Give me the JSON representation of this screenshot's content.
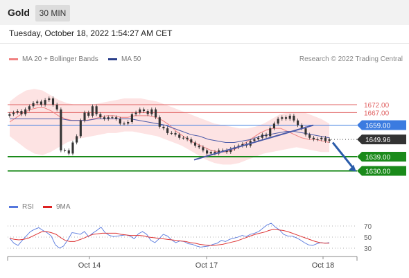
{
  "header": {
    "title": "Gold",
    "timeframe": "30 MIN"
  },
  "timestamp": "Tuesday, October 18, 2022 1:54:27 AM CET",
  "legend": {
    "ma20": "MA 20 + Bollinger Bands",
    "ma50": "MA 50",
    "credit": "Research © 2022 Trading Central",
    "rsi": "RSI",
    "rsi_ma": "9MA"
  },
  "colors": {
    "ma20": "#f08080",
    "ma50": "#4a5aa8",
    "band_fill": "#fde3e3",
    "resistance": "#e06060",
    "pivot": "#3b7be0",
    "support": "#1a8a1a",
    "trendline": "#4a5aa8",
    "arrow": "#2a5caa",
    "candle": "#333333",
    "rsi": "#5577dd",
    "rsi_ma": "#dd3333"
  },
  "chart_data": [
    {
      "type": "candlestick",
      "title": "Gold",
      "y_range": [
        1617,
        1683
      ],
      "x_ticks": [
        "Oct 14",
        "Oct 17",
        "Oct 18"
      ],
      "levels": [
        {
          "label": "1672.00",
          "value": 1672.0,
          "kind": "resistance"
        },
        {
          "label": "1667.00",
          "value": 1667.0,
          "kind": "resistance"
        },
        {
          "label": "1659.00",
          "value": 1659.0,
          "kind": "pivot"
        },
        {
          "label": "1649.96",
          "value": 1649.96,
          "kind": "last"
        },
        {
          "label": "1639.00",
          "value": 1639.0,
          "kind": "support"
        },
        {
          "label": "1630.00",
          "value": 1630.0,
          "kind": "support"
        }
      ],
      "close": [
        1666,
        1667,
        1668,
        1666,
        1669,
        1671,
        1673,
        1674,
        1672,
        1675,
        1676,
        1672,
        1669,
        1643,
        1643,
        1641,
        1648,
        1652,
        1662,
        1667,
        1665,
        1671,
        1666,
        1664,
        1663,
        1664,
        1664,
        1663,
        1660,
        1660,
        1661,
        1666,
        1667,
        1669,
        1668,
        1666,
        1669,
        1664,
        1658,
        1657,
        1654,
        1654,
        1653,
        1651,
        1651,
        1650,
        1648,
        1646,
        1645,
        1643,
        1641,
        1642,
        1641,
        1643,
        1643,
        1642,
        1644,
        1645,
        1646,
        1647,
        1646,
        1649,
        1650,
        1651,
        1653,
        1652,
        1657,
        1660,
        1663,
        1664,
        1663,
        1665,
        1662,
        1659,
        1657,
        1653,
        1651,
        1650,
        1650,
        1651,
        1649,
        1650
      ],
      "ma20": [
        1661,
        1664,
        1667,
        1669,
        1670,
        1670,
        1668,
        1665,
        1663,
        1662,
        1662,
        1662,
        1663,
        1664,
        1665,
        1665,
        1664,
        1664,
        1665,
        1665,
        1665,
        1664,
        1662,
        1659,
        1655,
        1652,
        1649,
        1647,
        1645,
        1643,
        1642,
        1642,
        1643,
        1645,
        1648,
        1651,
        1654,
        1656,
        1657,
        1657,
        1655,
        1653,
        1651,
        1650,
        1650,
        1649,
        1648
      ],
      "ma50": [
        1663,
        1663,
        1663,
        1663,
        1663,
        1663,
        1663,
        1662,
        1662,
        1662,
        1663,
        1663,
        1663,
        1663,
        1663,
        1662,
        1661,
        1660,
        1659,
        1657,
        1655,
        1653,
        1652,
        1650,
        1649,
        1648,
        1648,
        1649,
        1650,
        1652,
        1653,
        1654,
        1655,
        1655,
        1654,
        1653,
        1652,
        1651
      ],
      "bb_upper": [
        1674,
        1678,
        1681,
        1682,
        1681,
        1678,
        1675,
        1673,
        1672,
        1672,
        1672,
        1673,
        1674,
        1675,
        1676,
        1676,
        1676,
        1675,
        1674,
        1672,
        1670,
        1668,
        1666,
        1664,
        1662,
        1660,
        1659,
        1658,
        1657,
        1657,
        1658,
        1660,
        1663,
        1666,
        1667,
        1667,
        1667,
        1665,
        1663,
        1660
      ],
      "bb_lower": [
        1652,
        1648,
        1644,
        1641,
        1640,
        1642,
        1645,
        1648,
        1650,
        1651,
        1652,
        1653,
        1654,
        1654,
        1655,
        1655,
        1654,
        1653,
        1652,
        1650,
        1648,
        1646,
        1643,
        1640,
        1637,
        1635,
        1634,
        1634,
        1635,
        1637,
        1639,
        1641,
        1642,
        1643,
        1644,
        1645,
        1644,
        1643,
        1642,
        1642
      ]
    },
    {
      "type": "line",
      "title": "RSI",
      "y_range": [
        20,
        85
      ],
      "y_ticks": [
        70,
        50,
        30
      ],
      "series": [
        {
          "name": "RSI",
          "values": [
            48,
            39,
            35,
            44,
            52,
            60,
            64,
            67,
            62,
            58,
            52,
            36,
            30,
            34,
            45,
            58,
            57,
            55,
            60,
            51,
            57,
            62,
            68,
            58,
            53,
            51,
            52,
            53,
            54,
            52,
            47,
            56,
            60,
            55,
            44,
            40,
            47,
            55,
            52,
            45,
            40,
            43,
            42,
            38,
            37,
            34,
            32,
            33,
            34,
            37,
            39,
            44,
            42,
            46,
            48,
            50,
            53,
            51,
            55,
            57,
            60,
            66,
            72,
            75,
            68,
            63,
            55,
            52,
            52,
            49,
            45,
            40,
            36,
            35,
            38,
            40,
            39,
            40
          ]
        },
        {
          "name": "9MA",
          "values": [
            48,
            46,
            45,
            46,
            48,
            52,
            56,
            60,
            60,
            58,
            55,
            49,
            44,
            42,
            42,
            45,
            48,
            52,
            55,
            56,
            57,
            57,
            57,
            57,
            55,
            54,
            53,
            53,
            53,
            52,
            50,
            49,
            48,
            47,
            46,
            45,
            44,
            43,
            42,
            40,
            39,
            37,
            36,
            35,
            35,
            36,
            37,
            39,
            41,
            43,
            46,
            49,
            52,
            55,
            57,
            59,
            62,
            64,
            63,
            62,
            60,
            57,
            54,
            51,
            48,
            45,
            42,
            40,
            39,
            39
          ]
        }
      ]
    }
  ]
}
